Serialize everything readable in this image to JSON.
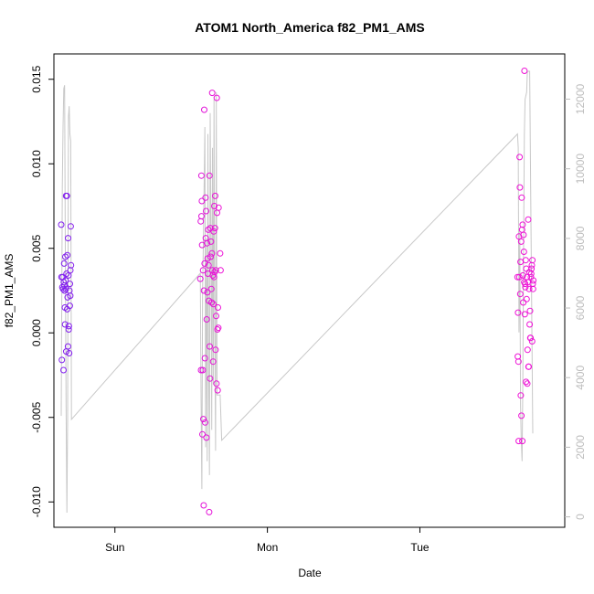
{
  "chart_data": {
    "type": "scatter",
    "title": "ATOM1 North_America f82_PM1_AMS",
    "xlabel": "Date",
    "ylabel": "f82_PM1_AMS",
    "x_ticks": [
      {
        "label": "Sun",
        "day": 1.0
      },
      {
        "label": "Mon",
        "day": 2.0
      },
      {
        "label": "Tue",
        "day": 3.0
      }
    ],
    "xlim": [
      0.6,
      3.95
    ],
    "ylim": [
      -0.0115,
      0.0165
    ],
    "y_ticks": [
      -0.01,
      -0.005,
      0.0,
      0.005,
      0.01,
      0.015
    ],
    "y_tick_labels": [
      "-0.010",
      "-0.005",
      "0.000",
      "0.005",
      "0.010",
      "0.015"
    ],
    "y2lim": [
      -300,
      13300
    ],
    "y2_ticks": [
      0,
      2000,
      4000,
      6000,
      8000,
      10000,
      12000
    ],
    "y2_tick_labels": [
      "0",
      "2000",
      "4000",
      "6000",
      "8000",
      "10000",
      "12000"
    ],
    "grid": false,
    "legend": "none",
    "colors": {
      "early": "#7a1ff0",
      "late": "#ee12d6",
      "line": "#c8c8c8",
      "axis": "#000000",
      "axis_right": "#bdbdbd"
    },
    "series": [
      {
        "kind": "points",
        "points": [
          [
            0.648,
            0.0064
          ],
          [
            0.65,
            0.0033
          ],
          [
            0.652,
            -0.0016
          ],
          [
            0.655,
            0.0027
          ],
          [
            0.658,
            0.0033
          ],
          [
            0.66,
            0.0026
          ],
          [
            0.663,
            -0.0022
          ],
          [
            0.665,
            0.003
          ],
          [
            0.667,
            0.0041
          ],
          [
            0.668,
            0.0028
          ],
          [
            0.67,
            0.0025
          ],
          [
            0.672,
            0.0015
          ],
          [
            0.673,
            0.0005
          ],
          [
            0.675,
            0.0045
          ],
          [
            0.677,
            0.0031
          ],
          [
            0.679,
            0.0026
          ],
          [
            0.68,
            0.0081
          ],
          [
            0.681,
            -0.0011
          ],
          [
            0.683,
            0.0035
          ],
          [
            0.685,
            0.0081
          ],
          [
            0.687,
            0.0014
          ],
          [
            0.688,
            0.0046
          ],
          [
            0.69,
            0.0021
          ],
          [
            0.692,
            -0.0008
          ],
          [
            0.693,
            0.0056
          ],
          [
            0.695,
            0.0034
          ],
          [
            0.697,
            0.0002
          ],
          [
            0.698,
            0.0004
          ],
          [
            0.7,
            -0.0012
          ],
          [
            0.702,
            0.0025
          ],
          [
            0.704,
            0.0016
          ],
          [
            0.705,
            0.0029
          ],
          [
            0.707,
            0.0022
          ],
          [
            0.708,
            0.0037
          ],
          [
            0.71,
            0.0063
          ],
          [
            0.712,
            0.004
          ]
        ]
      },
      {
        "kind": "points",
        "points": [
          [
            1.56,
            0.0032
          ],
          [
            1.563,
            0.0066
          ],
          [
            1.565,
            -0.0022
          ],
          [
            1.567,
            0.0093
          ],
          [
            1.568,
            0.0069
          ],
          [
            1.57,
            0.0078
          ],
          [
            1.572,
            0.0052
          ],
          [
            1.574,
            -0.006
          ],
          [
            1.576,
            -0.0022
          ],
          [
            1.578,
            0.0037
          ],
          [
            1.58,
            -0.0051
          ],
          [
            1.582,
            -0.0102
          ],
          [
            1.584,
            0.0025
          ],
          [
            1.586,
            0.0132
          ],
          [
            1.588,
            0.0041
          ],
          [
            1.59,
            -0.0015
          ],
          [
            1.592,
            -0.0053
          ],
          [
            1.594,
            0.008
          ],
          [
            1.596,
            0.0056
          ],
          [
            1.598,
            0.0072
          ],
          [
            1.6,
            -0.0062
          ],
          [
            1.602,
            0.0008
          ],
          [
            1.604,
            0.0053
          ],
          [
            1.606,
            0.0024
          ],
          [
            1.608,
            0.0044
          ],
          [
            1.61,
            0.0035
          ],
          [
            1.612,
            0.0061
          ],
          [
            1.614,
            0.004
          ],
          [
            1.616,
            0.0019
          ],
          [
            1.618,
            -0.0106
          ],
          [
            1.62,
            0.0093
          ],
          [
            1.622,
            -0.0008
          ],
          [
            1.624,
            -0.0027
          ],
          [
            1.626,
            0.0062
          ],
          [
            1.628,
            0.0045
          ],
          [
            1.63,
            0.0054
          ],
          [
            1.632,
            0.0026
          ],
          [
            1.634,
            0.0018
          ],
          [
            1.636,
            0.0047
          ],
          [
            1.638,
            0.0142
          ],
          [
            1.64,
            0.0037
          ],
          [
            1.642,
            0.0034
          ],
          [
            1.644,
            -0.0017
          ],
          [
            1.646,
            0.0017
          ],
          [
            1.648,
            0.006
          ],
          [
            1.65,
            0.0033
          ],
          [
            1.652,
            0.0075
          ],
          [
            1.654,
            0.0036
          ],
          [
            1.656,
            0.0062
          ],
          [
            1.658,
            0.0081
          ],
          [
            1.66,
            -0.001
          ],
          [
            1.662,
            0.0037
          ],
          [
            1.664,
            0.001
          ],
          [
            1.666,
            -0.003
          ],
          [
            1.668,
            0.0139
          ],
          [
            1.67,
            0.0071
          ],
          [
            1.672,
            0.0002
          ],
          [
            1.674,
            -0.0034
          ],
          [
            1.676,
            0.0015
          ],
          [
            1.678,
            0.0003
          ],
          [
            1.68,
            0.0074
          ],
          [
            1.69,
            0.0047
          ],
          [
            1.693,
            0.0037
          ]
        ]
      },
      {
        "kind": "points",
        "points": [
          [
            3.64,
            0.0033
          ],
          [
            3.642,
            -0.0014
          ],
          [
            3.644,
            0.0012
          ],
          [
            3.646,
            -0.0017
          ],
          [
            3.648,
            -0.0064
          ],
          [
            3.65,
            0.0057
          ],
          [
            3.652,
            0.0033
          ],
          [
            3.654,
            0.0104
          ],
          [
            3.656,
            0.0086
          ],
          [
            3.658,
            0.0023
          ],
          [
            3.66,
            0.0042
          ],
          [
            3.662,
            -0.0037
          ],
          [
            3.664,
            0.0054
          ],
          [
            3.666,
            -0.0049
          ],
          [
            3.668,
            0.008
          ],
          [
            3.67,
            0.0061
          ],
          [
            3.672,
            -0.0064
          ],
          [
            3.674,
            0.0064
          ],
          [
            3.676,
            0.0034
          ],
          [
            3.678,
            0.0018
          ],
          [
            3.68,
            0.0058
          ],
          [
            3.682,
            0.0048
          ],
          [
            3.684,
            0.003
          ],
          [
            3.686,
            0.0155
          ],
          [
            3.688,
            0.0011
          ],
          [
            3.69,
            0.0029
          ],
          [
            3.692,
            0.0027
          ],
          [
            3.694,
            0.0043
          ],
          [
            3.696,
            -0.0029
          ],
          [
            3.698,
            0.0038
          ],
          [
            3.7,
            0.002
          ],
          [
            3.702,
            0.0033
          ],
          [
            3.704,
            -0.003
          ],
          [
            3.706,
            -0.001
          ],
          [
            3.708,
            0.003
          ],
          [
            3.71,
            0.0067
          ],
          [
            3.712,
            -0.002
          ],
          [
            3.714,
            -0.002
          ],
          [
            3.716,
            0.0026
          ],
          [
            3.718,
            0.0036
          ],
          [
            3.72,
            0.0005
          ],
          [
            3.722,
            0.0013
          ],
          [
            3.724,
            -0.0003
          ],
          [
            3.726,
            -0.0003
          ],
          [
            3.728,
            0.0033
          ],
          [
            3.73,
            0.0035
          ],
          [
            3.732,
            0.0038
          ],
          [
            3.734,
            0.004
          ],
          [
            3.736,
            -0.0005
          ],
          [
            3.738,
            0.0043
          ],
          [
            3.74,
            0.0029
          ],
          [
            3.742,
            0.0026
          ],
          [
            3.744,
            0.0031
          ]
        ]
      },
      {
        "kind": "line",
        "axis": "right",
        "points": [
          [
            0.648,
            2900
          ],
          [
            0.655,
            9500
          ],
          [
            0.66,
            11200
          ],
          [
            0.665,
            12300
          ],
          [
            0.67,
            12400
          ],
          [
            0.675,
            7500
          ],
          [
            0.68,
            3200
          ],
          [
            0.685,
            120
          ],
          [
            0.69,
            2800
          ],
          [
            0.695,
            11500
          ],
          [
            0.7,
            11800
          ],
          [
            0.705,
            11000
          ],
          [
            0.71,
            10800
          ],
          [
            0.715,
            2800
          ],
          [
            1.56,
            7000
          ],
          [
            1.565,
            3500
          ],
          [
            1.57,
            800
          ],
          [
            1.575,
            6500
          ],
          [
            1.58,
            7800
          ],
          [
            1.59,
            11200
          ],
          [
            1.595,
            2000
          ],
          [
            1.6,
            8000
          ],
          [
            1.605,
            1600
          ],
          [
            1.61,
            11000
          ],
          [
            1.615,
            4000
          ],
          [
            1.62,
            1200
          ],
          [
            1.625,
            11600
          ],
          [
            1.63,
            8000
          ],
          [
            1.635,
            2500
          ],
          [
            1.64,
            10600
          ],
          [
            1.645,
            3800
          ],
          [
            1.65,
            12000
          ],
          [
            1.655,
            5500
          ],
          [
            1.66,
            1900
          ],
          [
            1.665,
            12200
          ],
          [
            1.67,
            3500
          ],
          [
            1.68,
            3500
          ],
          [
            1.69,
            3500
          ],
          [
            1.7,
            2200
          ],
          [
            3.64,
            11000
          ],
          [
            3.645,
            10600
          ],
          [
            3.65,
            5300
          ],
          [
            3.655,
            8200
          ],
          [
            3.66,
            3200
          ],
          [
            3.665,
            2200
          ],
          [
            3.67,
            1600
          ],
          [
            3.675,
            3800
          ],
          [
            3.68,
            7600
          ],
          [
            3.685,
            11000
          ],
          [
            3.69,
            12000
          ],
          [
            3.7,
            12200
          ],
          [
            3.705,
            12800
          ],
          [
            3.71,
            12800
          ],
          [
            3.72,
            12800
          ],
          [
            3.74,
            2400
          ]
        ]
      }
    ]
  }
}
